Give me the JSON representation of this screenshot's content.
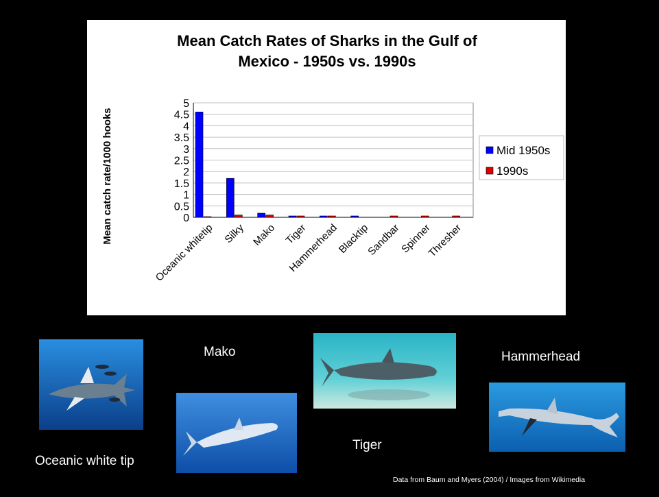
{
  "chart_data": {
    "type": "bar",
    "title": "Mean Catch Rates of Sharks in the Gulf of Mexico - 1950s vs. 1990s",
    "title_lines": [
      "Mean Catch Rates of Sharks in the Gulf of",
      "Mexico - 1950s vs. 1990s"
    ],
    "ylabel": "Mean catch rate/1000 hooks",
    "xlabel": "",
    "ylim": [
      0,
      5
    ],
    "yticks": [
      "0",
      "0.5",
      "1",
      "1.5",
      "2",
      "2.5",
      "3",
      "3.5",
      "4",
      "4.5",
      "5"
    ],
    "categories": [
      "Oceanic whitetip",
      "Silky",
      "Mako",
      "Tiger",
      "Hammerhead",
      "Blacktip",
      "Sandbar",
      "Spinner",
      "Thresher"
    ],
    "series": [
      {
        "name": "Mid 1950s",
        "color": "#0000ff",
        "values": [
          4.6,
          1.7,
          0.18,
          0.06,
          0.06,
          0.06,
          0,
          0,
          0
        ]
      },
      {
        "name": "1990s",
        "color": "#dd0000",
        "values": [
          0.03,
          0.1,
          0.1,
          0.06,
          0.06,
          0,
          0.06,
          0.06,
          0.06
        ]
      }
    ],
    "grid": true,
    "legend_position": "right"
  },
  "captions": {
    "oceanic": "Oceanic white tip",
    "mako": "Mako",
    "tiger": "Tiger",
    "hammerhead": "Hammerhead"
  },
  "credit": "Data from Baum and Myers (2004) / Images from Wikimedia",
  "colors": {
    "background": "#000000",
    "panel": "#ffffff",
    "water_blue": "#1a6fc8",
    "water_teal": "#3bbfcf"
  }
}
